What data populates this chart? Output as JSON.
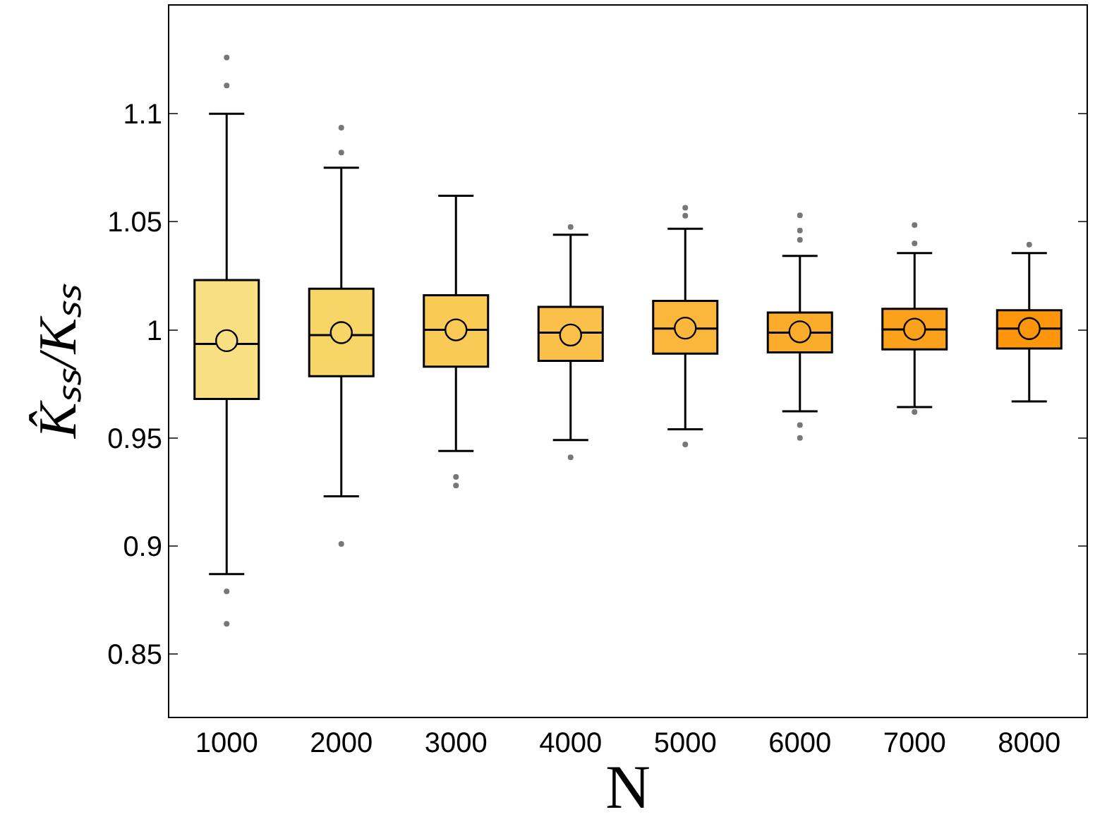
{
  "chart_data": {
    "type": "box",
    "xlabel": "N",
    "ylabel": "K̂ₛₛ/Kₛₛ",
    "categories": [
      "1000",
      "2000",
      "3000",
      "4000",
      "5000",
      "6000",
      "7000",
      "8000"
    ],
    "colors": [
      "#f8df82",
      "#f8d567",
      "#f9cb56",
      "#fac049",
      "#fbb73c",
      "#fbac2b",
      "#fca11c",
      "#fd960a"
    ],
    "boxes": [
      {
        "low": 0.887,
        "q1": 0.968,
        "median": 0.9935,
        "q3": 1.023,
        "high": 1.1,
        "mean": 0.995,
        "outliers": [
          1.126,
          1.113,
          0.879,
          0.864
        ]
      },
      {
        "low": 0.923,
        "q1": 0.9786,
        "median": 0.9976,
        "q3": 1.019,
        "high": 1.075,
        "mean": 0.9987,
        "outliers": [
          1.0935,
          1.082,
          0.901
        ]
      },
      {
        "low": 0.944,
        "q1": 0.983,
        "median": 1.0,
        "q3": 1.016,
        "high": 1.062,
        "mean": 1.0,
        "outliers": [
          0.932,
          0.928
        ]
      },
      {
        "low": 0.949,
        "q1": 0.9857,
        "median": 0.9987,
        "q3": 1.0106,
        "high": 1.044,
        "mean": 0.9976,
        "outliers": [
          1.0476,
          0.941
        ]
      },
      {
        "low": 0.954,
        "q1": 0.989,
        "median": 1.0006,
        "q3": 1.0134,
        "high": 1.0468,
        "mean": 1.0008,
        "outliers": [
          1.0565,
          1.0528,
          0.947
        ]
      },
      {
        "low": 0.9623,
        "q1": 0.9896,
        "median": 0.9987,
        "q3": 1.008,
        "high": 1.0342,
        "mean": 0.9991,
        "outliers": [
          1.053,
          1.046,
          1.0416,
          0.956,
          0.95
        ]
      },
      {
        "low": 0.9643,
        "q1": 0.991,
        "median": 1.0002,
        "q3": 1.0097,
        "high": 1.0355,
        "mean": 1.0003,
        "outliers": [
          1.0485,
          1.04,
          0.962
        ]
      },
      {
        "low": 0.9669,
        "q1": 0.9914,
        "median": 1.0006,
        "q3": 1.0091,
        "high": 1.0355,
        "mean": 1.0006,
        "outliers": [
          1.0394
        ]
      }
    ],
    "ylim": [
      0.821,
      1.15
    ],
    "yticks": [
      0.85,
      0.9,
      0.95,
      1,
      1.05,
      1.1
    ]
  }
}
